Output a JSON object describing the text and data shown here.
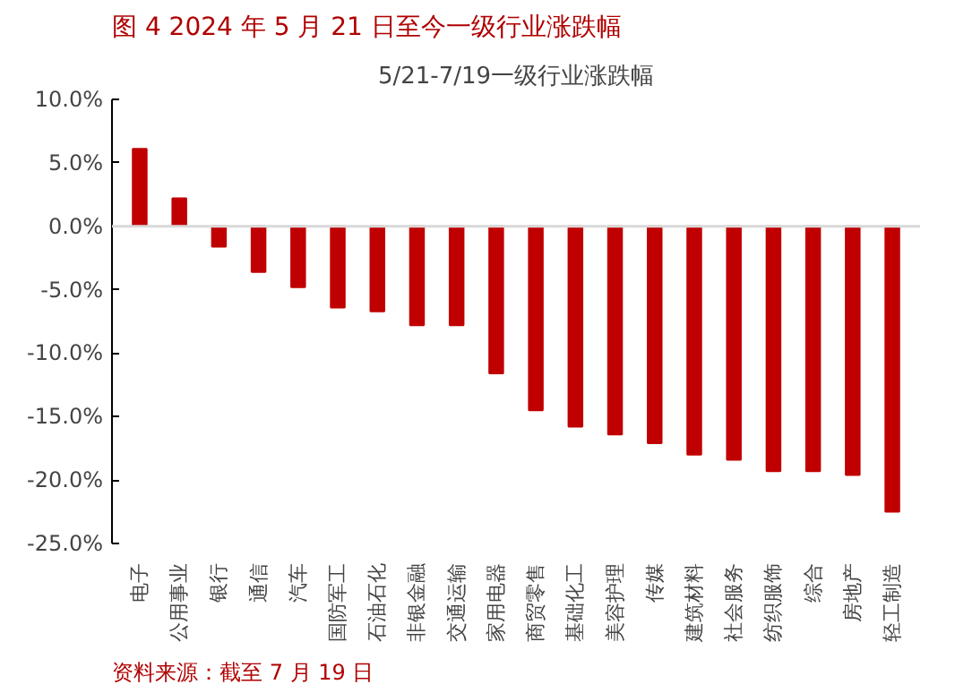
{
  "chart_data": {
    "type": "bar",
    "title": "5/21-7/19一级行业涨跌幅",
    "subtitle": "图 4 2024 年 5 月 21 日至今一级行业涨跌幅",
    "categories": [
      "电子",
      "公用事业",
      "银行",
      "通信",
      "汽车",
      "国防军工",
      "石油石化",
      "非银金融",
      "交通运输",
      "家用电器",
      "商贸零售",
      "基础化工",
      "美容护理",
      "传媒",
      "建筑材料",
      "社会服务",
      "纺织服饰",
      "综合",
      "房地产",
      "轻工制造"
    ],
    "values": [
      6.1,
      2.2,
      -1.6,
      -3.6,
      -4.8,
      -6.4,
      -6.7,
      -7.8,
      -7.8,
      -11.6,
      -14.5,
      -15.8,
      -16.4,
      -17.1,
      -18.0,
      -18.4,
      -19.3,
      -19.3,
      -19.6,
      -22.5
    ],
    "color": "#c00000",
    "ylim": [
      -25,
      10
    ],
    "yticks": [
      {
        "value": 10,
        "label": "10.0%"
      },
      {
        "value": 5,
        "label": "5.0%"
      },
      {
        "value": 0,
        "label": "0.0%"
      },
      {
        "value": -5,
        "label": "-5.0%"
      },
      {
        "value": -10,
        "label": "-10.0%"
      },
      {
        "value": -15,
        "label": "-15.0%"
      },
      {
        "value": -20,
        "label": "-20.0%"
      },
      {
        "value": -25,
        "label": "-25.0%"
      }
    ],
    "annotations": [
      "资料来源：截至 7 月 19 日"
    ]
  }
}
